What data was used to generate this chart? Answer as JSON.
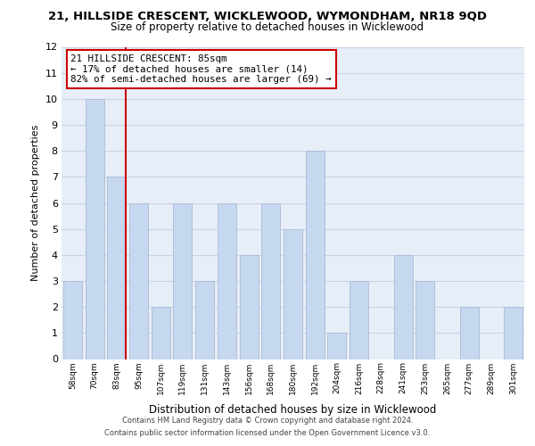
{
  "title": "21, HILLSIDE CRESCENT, WICKLEWOOD, WYMONDHAM, NR18 9QD",
  "subtitle": "Size of property relative to detached houses in Wicklewood",
  "xlabel": "Distribution of detached houses by size in Wicklewood",
  "ylabel": "Number of detached properties",
  "bar_labels": [
    "58sqm",
    "70sqm",
    "83sqm",
    "95sqm",
    "107sqm",
    "119sqm",
    "131sqm",
    "143sqm",
    "156sqm",
    "168sqm",
    "180sqm",
    "192sqm",
    "204sqm",
    "216sqm",
    "228sqm",
    "241sqm",
    "253sqm",
    "265sqm",
    "277sqm",
    "289sqm",
    "301sqm"
  ],
  "bar_heights": [
    3,
    10,
    7,
    6,
    2,
    6,
    3,
    6,
    4,
    6,
    5,
    8,
    1,
    3,
    0,
    4,
    3,
    0,
    2,
    0,
    2
  ],
  "bar_color": "#c5d8f0",
  "bar_edge_color": "#aabbd4",
  "highlight_bar_index": 2,
  "highlight_line_color": "#cc0000",
  "ylim": [
    0,
    12
  ],
  "yticks": [
    0,
    1,
    2,
    3,
    4,
    5,
    6,
    7,
    8,
    9,
    10,
    11,
    12
  ],
  "annotation_title": "21 HILLSIDE CRESCENT: 85sqm",
  "annotation_line1": "← 17% of detached houses are smaller (14)",
  "annotation_line2": "82% of semi-detached houses are larger (69) →",
  "annotation_box_facecolor": "#ffffff",
  "annotation_box_edgecolor": "#cc0000",
  "grid_color": "#c8d4e8",
  "bg_color": "#e8eef8",
  "footer_line1": "Contains HM Land Registry data © Crown copyright and database right 2024.",
  "footer_line2": "Contains public sector information licensed under the Open Government Licence v3.0."
}
